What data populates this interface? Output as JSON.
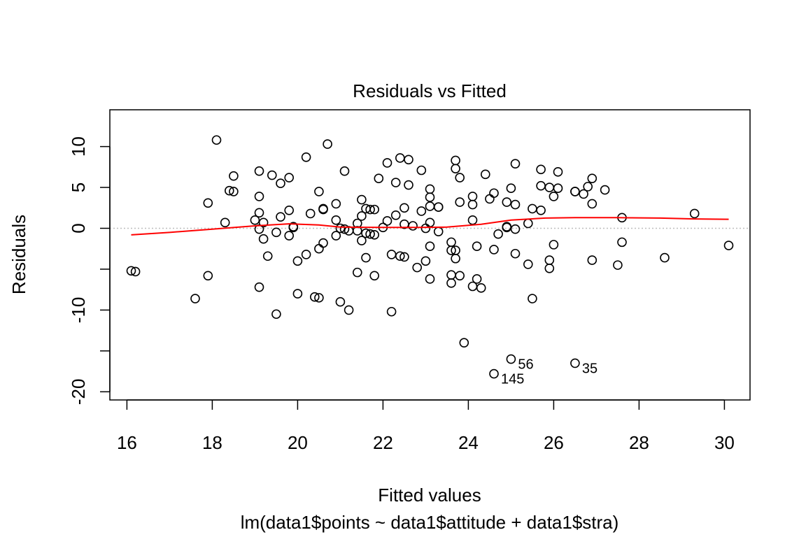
{
  "chart_data": {
    "type": "scatter",
    "title": "Residuals vs Fitted",
    "xlabel": "Fitted values",
    "ylabel": "Residuals",
    "subtitle": "lm(data1$points ~ data1$attitude + data1$stra)",
    "xlim": [
      15.6,
      30.6
    ],
    "ylim": [
      -21,
      14.5
    ],
    "x_ticks": [
      16,
      18,
      20,
      22,
      24,
      26,
      28,
      30
    ],
    "x_tick_labels": [
      "16",
      "18",
      "20",
      "22",
      "24",
      "26",
      "28",
      "30"
    ],
    "y_ticks": [
      -20,
      -15,
      -10,
      -5,
      0,
      5,
      10
    ],
    "y_tick_labels": [
      "-20",
      "",
      "-10",
      "",
      "0",
      "5",
      "10"
    ],
    "reference_line": {
      "y": 0,
      "style": "dotted",
      "color": "#bebebe"
    },
    "point_color": "#000000",
    "smooth_color": "#ff0000",
    "grid": false,
    "points": [
      [
        16.1,
        -5.2
      ],
      [
        16.2,
        -5.3
      ],
      [
        17.6,
        -8.6
      ],
      [
        17.9,
        -5.8
      ],
      [
        17.9,
        3.1
      ],
      [
        18.1,
        10.8
      ],
      [
        18.3,
        0.7
      ],
      [
        18.4,
        4.6
      ],
      [
        18.5,
        4.5
      ],
      [
        18.5,
        6.4
      ],
      [
        19.0,
        1.0
      ],
      [
        19.1,
        7.0
      ],
      [
        19.1,
        3.9
      ],
      [
        19.1,
        1.9
      ],
      [
        19.1,
        -0.1
      ],
      [
        19.1,
        -7.2
      ],
      [
        19.2,
        -1.3
      ],
      [
        19.2,
        0.7
      ],
      [
        19.3,
        -3.4
      ],
      [
        19.4,
        6.5
      ],
      [
        19.5,
        -0.5
      ],
      [
        19.5,
        -10.5
      ],
      [
        19.6,
        5.5
      ],
      [
        19.6,
        1.4
      ],
      [
        19.8,
        6.2
      ],
      [
        19.8,
        2.2
      ],
      [
        19.8,
        -0.9
      ],
      [
        19.9,
        0.2
      ],
      [
        19.9,
        0.1
      ],
      [
        20.0,
        -4.0
      ],
      [
        20.0,
        -8.0
      ],
      [
        20.2,
        -3.2
      ],
      [
        20.2,
        8.7
      ],
      [
        20.3,
        1.8
      ],
      [
        20.4,
        -8.4
      ],
      [
        20.5,
        -8.5
      ],
      [
        20.5,
        4.5
      ],
      [
        20.5,
        -2.5
      ],
      [
        20.6,
        2.3
      ],
      [
        20.6,
        2.4
      ],
      [
        20.6,
        -1.8
      ],
      [
        20.7,
        10.3
      ],
      [
        20.9,
        3.0
      ],
      [
        20.9,
        1.0
      ],
      [
        20.9,
        -0.9
      ],
      [
        21.0,
        -9.0
      ],
      [
        21.0,
        0.0
      ],
      [
        21.1,
        7.0
      ],
      [
        21.1,
        -0.1
      ],
      [
        21.2,
        -10.0
      ],
      [
        21.2,
        -0.3
      ],
      [
        21.4,
        -0.3
      ],
      [
        21.4,
        0.6
      ],
      [
        21.4,
        -5.4
      ],
      [
        21.5,
        3.5
      ],
      [
        21.5,
        1.5
      ],
      [
        21.5,
        -1.5
      ],
      [
        21.6,
        2.4
      ],
      [
        21.6,
        -0.6
      ],
      [
        21.6,
        -3.6
      ],
      [
        21.7,
        2.3
      ],
      [
        21.7,
        -0.7
      ],
      [
        21.8,
        2.3
      ],
      [
        21.8,
        -0.8
      ],
      [
        21.8,
        -5.8
      ],
      [
        21.9,
        6.1
      ],
      [
        22.0,
        0.1
      ],
      [
        22.1,
        8.0
      ],
      [
        22.1,
        0.9
      ],
      [
        22.2,
        -10.2
      ],
      [
        22.2,
        -3.2
      ],
      [
        22.3,
        5.6
      ],
      [
        22.3,
        1.6
      ],
      [
        22.4,
        8.6
      ],
      [
        22.4,
        -3.4
      ],
      [
        22.5,
        2.5
      ],
      [
        22.5,
        0.5
      ],
      [
        22.5,
        -3.5
      ],
      [
        22.6,
        8.4
      ],
      [
        22.6,
        5.3
      ],
      [
        22.7,
        0.3
      ],
      [
        22.8,
        -4.8
      ],
      [
        22.9,
        7.1
      ],
      [
        22.9,
        2.1
      ],
      [
        23.0,
        0.0
      ],
      [
        23.0,
        -4.0
      ],
      [
        23.1,
        4.8
      ],
      [
        23.1,
        3.8
      ],
      [
        23.1,
        2.7
      ],
      [
        23.1,
        0.7
      ],
      [
        23.1,
        -2.2
      ],
      [
        23.1,
        -6.2
      ],
      [
        23.3,
        2.6
      ],
      [
        23.3,
        2.6
      ],
      [
        23.3,
        -0.4
      ],
      [
        23.6,
        -1.7
      ],
      [
        23.6,
        -2.7
      ],
      [
        23.6,
        -5.7
      ],
      [
        23.6,
        -6.7
      ],
      [
        23.7,
        8.3
      ],
      [
        23.7,
        7.3
      ],
      [
        23.7,
        -2.7
      ],
      [
        23.7,
        -3.7
      ],
      [
        23.8,
        6.2
      ],
      [
        23.8,
        3.2
      ],
      [
        23.8,
        -5.8
      ],
      [
        23.9,
        -14.0
      ],
      [
        24.1,
        3.9
      ],
      [
        24.1,
        2.9
      ],
      [
        24.1,
        1.0
      ],
      [
        24.1,
        -7.1
      ],
      [
        24.2,
        -2.2
      ],
      [
        24.2,
        -6.2
      ],
      [
        24.3,
        -7.3
      ],
      [
        24.4,
        6.6
      ],
      [
        24.5,
        3.6
      ],
      [
        24.6,
        4.3
      ],
      [
        24.6,
        -2.6
      ],
      [
        24.6,
        -17.8
      ],
      [
        24.7,
        -0.7
      ],
      [
        24.9,
        3.2
      ],
      [
        24.9,
        0.2
      ],
      [
        24.9,
        0.1
      ],
      [
        25.0,
        4.9
      ],
      [
        25.0,
        -16.0
      ],
      [
        25.1,
        7.9
      ],
      [
        25.1,
        2.9
      ],
      [
        25.1,
        -0.1
      ],
      [
        25.1,
        -3.1
      ],
      [
        25.4,
        0.6
      ],
      [
        25.4,
        -4.4
      ],
      [
        25.5,
        2.4
      ],
      [
        25.5,
        -8.6
      ],
      [
        25.7,
        7.2
      ],
      [
        25.7,
        5.2
      ],
      [
        25.7,
        2.2
      ],
      [
        25.9,
        5.0
      ],
      [
        25.9,
        -3.9
      ],
      [
        25.9,
        -4.9
      ],
      [
        26.0,
        3.9
      ],
      [
        26.0,
        -2.0
      ],
      [
        26.1,
        6.9
      ],
      [
        26.1,
        4.9
      ],
      [
        26.5,
        4.5
      ],
      [
        26.5,
        4.5
      ],
      [
        26.5,
        -16.5
      ],
      [
        26.7,
        4.2
      ],
      [
        26.8,
        5.1
      ],
      [
        26.9,
        6.1
      ],
      [
        26.9,
        3.0
      ],
      [
        26.9,
        -3.9
      ],
      [
        27.2,
        4.7
      ],
      [
        27.5,
        -4.5
      ],
      [
        27.6,
        1.3
      ],
      [
        27.6,
        -1.7
      ],
      [
        28.6,
        -3.6
      ],
      [
        29.3,
        1.8
      ],
      [
        30.1,
        -2.1
      ]
    ],
    "smooth": [
      [
        16.1,
        -0.8
      ],
      [
        17.0,
        -0.5
      ],
      [
        18.0,
        -0.1
      ],
      [
        19.0,
        0.3
      ],
      [
        19.8,
        0.55
      ],
      [
        20.5,
        0.4
      ],
      [
        21.0,
        0.15
      ],
      [
        22.0,
        0.1
      ],
      [
        22.8,
        0.1
      ],
      [
        23.5,
        0.15
      ],
      [
        24.3,
        0.5
      ],
      [
        25.0,
        1.0
      ],
      [
        25.8,
        1.25
      ],
      [
        26.5,
        1.3
      ],
      [
        27.5,
        1.3
      ],
      [
        28.5,
        1.25
      ],
      [
        29.3,
        1.15
      ],
      [
        30.1,
        1.1
      ]
    ],
    "annotations": [
      {
        "x": 24.6,
        "y": -17.8,
        "label": "145"
      },
      {
        "x": 25.0,
        "y": -16.0,
        "label": "56"
      },
      {
        "x": 26.5,
        "y": -16.5,
        "label": "35"
      }
    ]
  }
}
